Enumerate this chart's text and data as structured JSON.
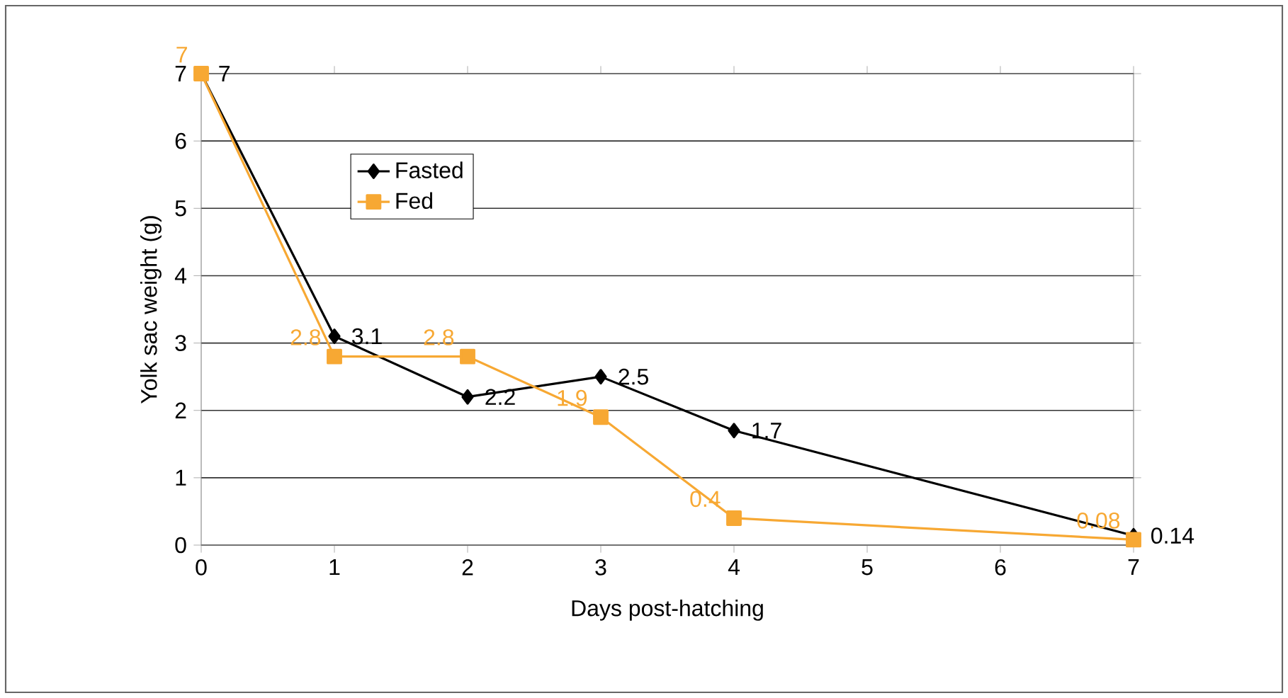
{
  "chart_data": {
    "type": "line",
    "xlabel": "Days post-hatching",
    "ylabel": "Yolk sac weight (g)",
    "x": [
      0,
      1,
      2,
      3,
      4,
      7
    ],
    "series": [
      {
        "name": "Fasted",
        "color": "#000000",
        "marker": "diamond",
        "values": [
          7,
          3.1,
          2.2,
          2.5,
          1.7,
          0.14
        ]
      },
      {
        "name": "Fed",
        "color": "#f7a833",
        "marker": "square",
        "values": [
          7,
          2.8,
          2.8,
          1.9,
          0.4,
          0.08
        ]
      }
    ],
    "xlim": [
      0,
      7
    ],
    "ylim": [
      0,
      7
    ],
    "xticks": [
      0,
      1,
      2,
      3,
      4,
      5,
      6,
      7
    ],
    "yticks": [
      0,
      1,
      2,
      3,
      4,
      5,
      6,
      7
    ],
    "grid": "y",
    "legend": "top left",
    "data_labels": true,
    "line_style": "solid"
  }
}
